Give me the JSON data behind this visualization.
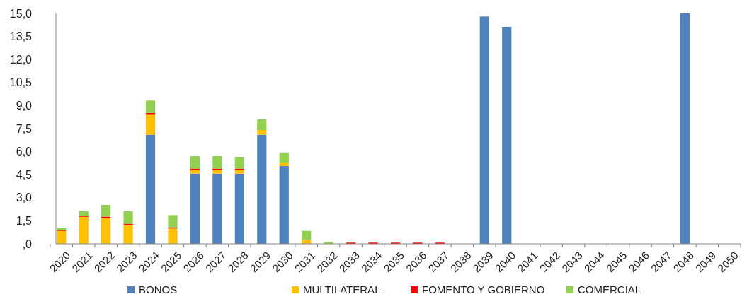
{
  "chart_data": {
    "type": "bar",
    "stacked": true,
    "categories": [
      "2020",
      "2021",
      "2022",
      "2023",
      "2024",
      "2025",
      "2026",
      "2027",
      "2028",
      "2029",
      "2030",
      "2031",
      "2032",
      "2033",
      "2034",
      "2035",
      "2036",
      "2037",
      "2038",
      "2039",
      "2040",
      "2041",
      "2042",
      "2043",
      "2044",
      "2045",
      "2046",
      "2047",
      "2048",
      "2049",
      "2050"
    ],
    "series": [
      {
        "name": "BONOS",
        "color": "#4f81bd",
        "values": [
          0,
          0,
          0,
          0,
          7.1,
          0,
          4.57,
          4.57,
          4.57,
          7.1,
          5.06,
          0,
          0,
          0,
          0,
          0,
          0,
          0,
          0,
          14.8,
          14.13,
          0,
          0,
          0,
          0,
          0,
          0,
          0,
          15.0,
          0,
          0
        ]
      },
      {
        "name": "MULTILATERAL",
        "color": "#ffc000",
        "values": [
          0.84,
          1.76,
          1.69,
          1.23,
          1.34,
          1.0,
          0.23,
          0.23,
          0.23,
          0.31,
          0.23,
          0.26,
          0,
          0,
          0,
          0,
          0,
          0,
          0,
          0,
          0,
          0,
          0,
          0,
          0,
          0,
          0,
          0,
          0,
          0,
          0
        ]
      },
      {
        "name": "FOMENTO Y GOBIERNO",
        "color": "#ff0000",
        "values": [
          0.08,
          0.08,
          0.08,
          0.08,
          0.08,
          0.08,
          0.08,
          0.08,
          0.08,
          0,
          0,
          0,
          0,
          0.08,
          0.08,
          0.08,
          0.08,
          0.08,
          0,
          0,
          0,
          0,
          0,
          0,
          0,
          0,
          0,
          0,
          0,
          0,
          0
        ]
      },
      {
        "name": "COMERCIAL",
        "color": "#92d050",
        "values": [
          0.11,
          0.28,
          0.76,
          0.81,
          0.81,
          0.79,
          0.84,
          0.84,
          0.78,
          0.7,
          0.66,
          0.58,
          0.12,
          0,
          0,
          0,
          0,
          0,
          0,
          0,
          0,
          0,
          0,
          0,
          0,
          0,
          0,
          0,
          0,
          0,
          0
        ]
      }
    ],
    "ylim": [
      0,
      15
    ],
    "yticks": [
      {
        "value": 0,
        "label": ",0"
      },
      {
        "value": 1.5,
        "label": "1,5"
      },
      {
        "value": 3,
        "label": "3,0"
      },
      {
        "value": 4.5,
        "label": "4,5"
      },
      {
        "value": 6,
        "label": "6,0"
      },
      {
        "value": 7.5,
        "label": "7,5"
      },
      {
        "value": 9,
        "label": "9,0"
      },
      {
        "value": 10.5,
        "label": "10,5"
      },
      {
        "value": 12,
        "label": "12,0"
      },
      {
        "value": 13.5,
        "label": "13,5"
      },
      {
        "value": 15,
        "label": "15,0"
      }
    ],
    "legend": "bottom"
  }
}
